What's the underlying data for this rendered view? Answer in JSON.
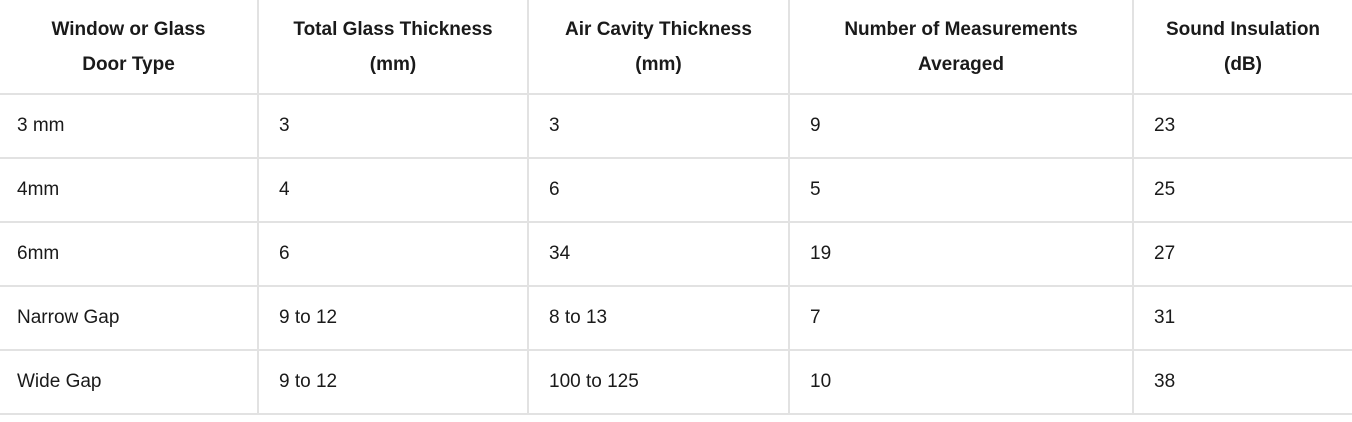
{
  "table": {
    "headers": [
      "Window or Glass Door Type",
      "Total Glass Thickness (mm)",
      "Air Cavity Thickness (mm)",
      "Number of Measurements Averaged",
      "Sound Insulation (dB)"
    ],
    "rows": [
      [
        "3 mm",
        "3",
        "3",
        "9",
        "23"
      ],
      [
        "4mm",
        "4",
        "6",
        "5",
        "25"
      ],
      [
        "6mm",
        "6",
        "34",
        "19",
        "27"
      ],
      [
        "Narrow Gap",
        "9 to 12",
        "8 to 13",
        "7",
        "31"
      ],
      [
        "Wide Gap",
        "9 to 12",
        "100 to 125",
        "10",
        "38"
      ]
    ]
  }
}
